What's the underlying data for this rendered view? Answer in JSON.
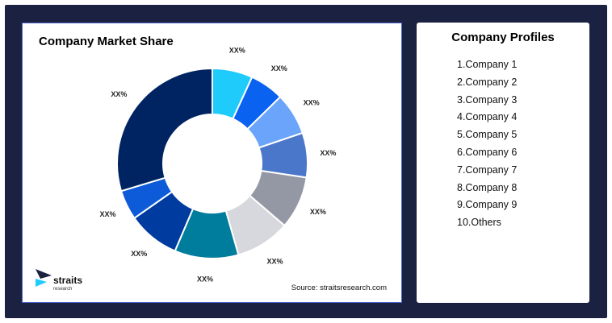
{
  "chart_data": {
    "type": "pie",
    "title": "Company Market Share",
    "slices": [
      {
        "label": "XX%",
        "value": 6.5,
        "color": "#1ecbfb"
      },
      {
        "label": "XX%",
        "value": 5.5,
        "color": "#0a62f0"
      },
      {
        "label": "XX%",
        "value": 6.8,
        "color": "#6aa4fb"
      },
      {
        "label": "XX%",
        "value": 7.2,
        "color": "#4a77c9"
      },
      {
        "label": "XX%",
        "value": 8.5,
        "color": "#9498a5"
      },
      {
        "label": "XX%",
        "value": 8.8,
        "color": "#d7d8dd"
      },
      {
        "label": "XX%",
        "value": 10.3,
        "color": "#007c9d"
      },
      {
        "label": "XX%",
        "value": 8.4,
        "color": "#003ba0"
      },
      {
        "label": "XX%",
        "value": 4.8,
        "color": "#0d5bd8"
      },
      {
        "label": "XX%",
        "value": 28.2,
        "color": "#002462"
      }
    ]
  },
  "profiles": {
    "title": "Company Profiles",
    "items": [
      "1.Company 1",
      "2.Company 2",
      "3.Company 3",
      "4.Company 4",
      "5.Company 5",
      "6.Company 6",
      "7.Company 7",
      "8.Company 8",
      "9.Company 9",
      "10.Others"
    ]
  },
  "source": "Source: straitsresearch.com",
  "logo": {
    "name": "straits",
    "sub": "research"
  }
}
